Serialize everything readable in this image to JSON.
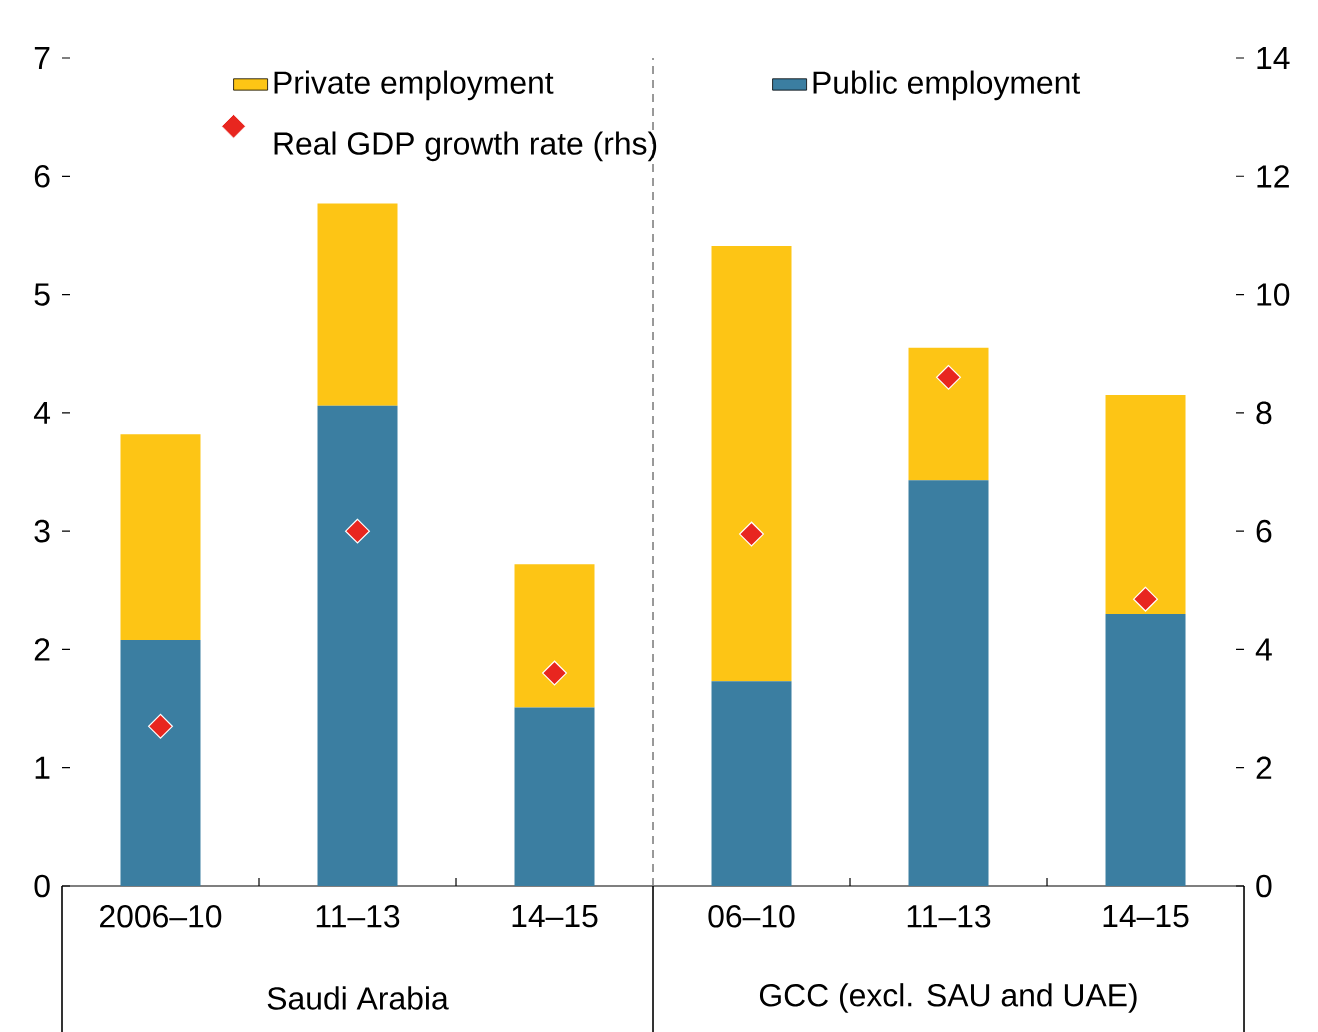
{
  "chart_data": {
    "type": "bar",
    "stacked": true,
    "categories": [
      "2006–10",
      "11–13",
      "14–15",
      "06–10",
      "11–13",
      "14–15"
    ],
    "series": [
      {
        "name": "Public employment",
        "color": "#3b7ea1",
        "values": [
          2.08,
          4.06,
          1.51,
          1.73,
          3.43,
          2.3
        ]
      },
      {
        "name": "Private employment",
        "color": "#fdc515",
        "values": [
          1.74,
          1.71,
          1.21,
          3.68,
          1.12,
          1.85
        ]
      },
      {
        "name": "Real GDP growth rate (rhs)",
        "type": "scatter",
        "axis": "y2",
        "marker": "diamond",
        "color": "#e8261f",
        "values": [
          2.7,
          6.0,
          3.6,
          5.95,
          8.6,
          4.85
        ]
      }
    ],
    "ylim": [
      0,
      7
    ],
    "yticks": [
      0,
      1,
      2,
      3,
      4,
      5,
      6,
      7
    ],
    "y2lim": [
      0,
      14
    ],
    "y2ticks": [
      0,
      2,
      4,
      6,
      8,
      10,
      12,
      14
    ],
    "annotations": [
      "Saudi Arabia",
      "GCC (excl. SAU and UAE)"
    ],
    "legend": "top",
    "grid": false
  }
}
